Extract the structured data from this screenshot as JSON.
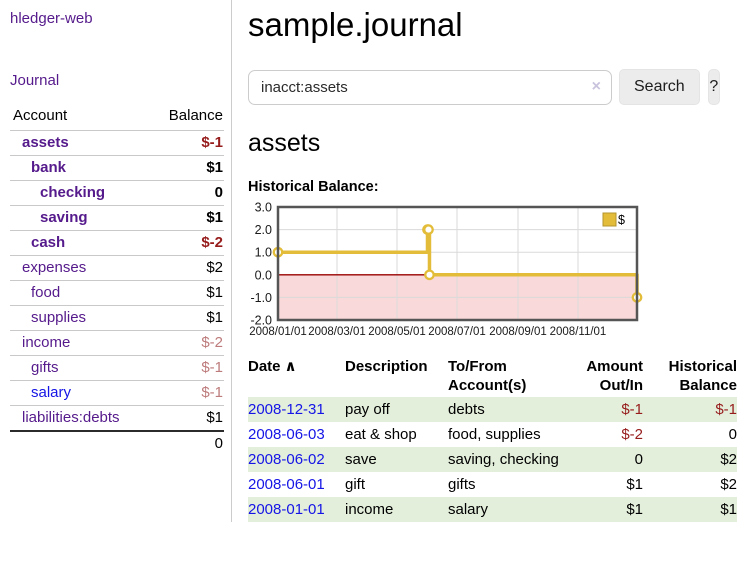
{
  "colors": {
    "purple": "#551a8b",
    "blue": "#1515e6",
    "neg_strong": "#961c1c",
    "neg_muted": "#bd7b7b",
    "row_green": "#e3eedb",
    "chart_line": "#e3bd3a",
    "chart_line_edge": "#b5952d",
    "chart_border": "#555555",
    "chart_grid": "#dadada",
    "chart_zero_line": "#990000",
    "chart_negative_fill": "#f9d9d9",
    "btn_bg": "#ececec",
    "border_gray": "#cccccc"
  },
  "sidebar": {
    "app_title": "hledger-web",
    "nav_journal": "Journal",
    "table": {
      "account_header": "Account",
      "balance_header": "Balance",
      "rows": [
        {
          "account": "assets",
          "balance": "$-1",
          "indent": 1,
          "bold": true,
          "color": "purple"
        },
        {
          "account": "bank",
          "balance": "$1",
          "indent": 2,
          "bold": true,
          "color": "purple"
        },
        {
          "account": "checking",
          "balance": "0",
          "indent": 3,
          "bold": true,
          "color": "purple"
        },
        {
          "account": "saving",
          "balance": "$1",
          "indent": 3,
          "bold": true,
          "color": "purple"
        },
        {
          "account": "cash",
          "balance": "$-2",
          "indent": 2,
          "bold": true,
          "color": "purple"
        },
        {
          "account": "expenses",
          "balance": "$2",
          "indent": 1,
          "bold": false,
          "color": "purple"
        },
        {
          "account": "food",
          "balance": "$1",
          "indent": 2,
          "bold": false,
          "color": "purple"
        },
        {
          "account": "supplies",
          "balance": "$1",
          "indent": 2,
          "bold": false,
          "color": "purple"
        },
        {
          "account": "income",
          "balance": "$-2",
          "indent": 1,
          "bold": false,
          "color": "purple"
        },
        {
          "account": "gifts",
          "balance": "$-1",
          "indent": 2,
          "bold": false,
          "color": "purple"
        },
        {
          "account": "salary",
          "balance": "$-1",
          "indent": 2,
          "bold": false,
          "color": "blue"
        },
        {
          "account": "liabilities:debts",
          "balance": "$1",
          "indent": 1,
          "bold": false,
          "color": "purple"
        }
      ],
      "total": "0"
    }
  },
  "main": {
    "title": "sample.journal",
    "search": {
      "value": "inacct:assets",
      "clear_icon": "×",
      "button_label": "Search",
      "help_label": "?"
    },
    "section_heading": "assets",
    "chart_heading": "Historical Balance:"
  },
  "chart_data": {
    "type": "line",
    "step": true,
    "title": "Historical Balance",
    "series": [
      {
        "name": "$",
        "points": [
          [
            "2008-01-01",
            1
          ],
          [
            "2008-06-01",
            2
          ],
          [
            "2008-06-02",
            2
          ],
          [
            "2008-06-03",
            0
          ],
          [
            "2008-12-31",
            -1
          ]
        ]
      }
    ],
    "ylim": [
      -2,
      3
    ],
    "yticks": [
      3,
      2,
      1,
      0,
      -1,
      -2
    ],
    "xticks": [
      "2008/01/01",
      "2008/03/01",
      "2008/05/01",
      "2008/07/01",
      "2008/09/01",
      "2008/11/01"
    ],
    "xrange": [
      "2008-01-01",
      "2008-12-31"
    ],
    "legend": {
      "label": "$",
      "position": "top-right"
    },
    "grid": true,
    "negative_region_shaded": true
  },
  "register": {
    "headers": {
      "date": "Date",
      "sort_icon": "∧",
      "description": "Description",
      "accounts": "To/From Account(s)",
      "amount": "Amount Out/In",
      "balance": "Historical Balance"
    },
    "rows": [
      {
        "date": "2008-12-31",
        "description": "pay off",
        "accounts": "debts",
        "amount": "$-1",
        "balance": "$-1",
        "green": true
      },
      {
        "date": "2008-06-03",
        "description": "eat & shop",
        "accounts": "food, supplies",
        "amount": "$-2",
        "balance": "0",
        "green": false
      },
      {
        "date": "2008-06-02",
        "description": "save",
        "accounts": "saving, checking",
        "amount": "0",
        "balance": "$2",
        "green": true
      },
      {
        "date": "2008-06-01",
        "description": "gift",
        "accounts": "gifts",
        "amount": "$1",
        "balance": "$2",
        "green": false
      },
      {
        "date": "2008-01-01",
        "description": "income",
        "accounts": "salary",
        "amount": "$1",
        "balance": "$1",
        "green": true
      }
    ]
  }
}
